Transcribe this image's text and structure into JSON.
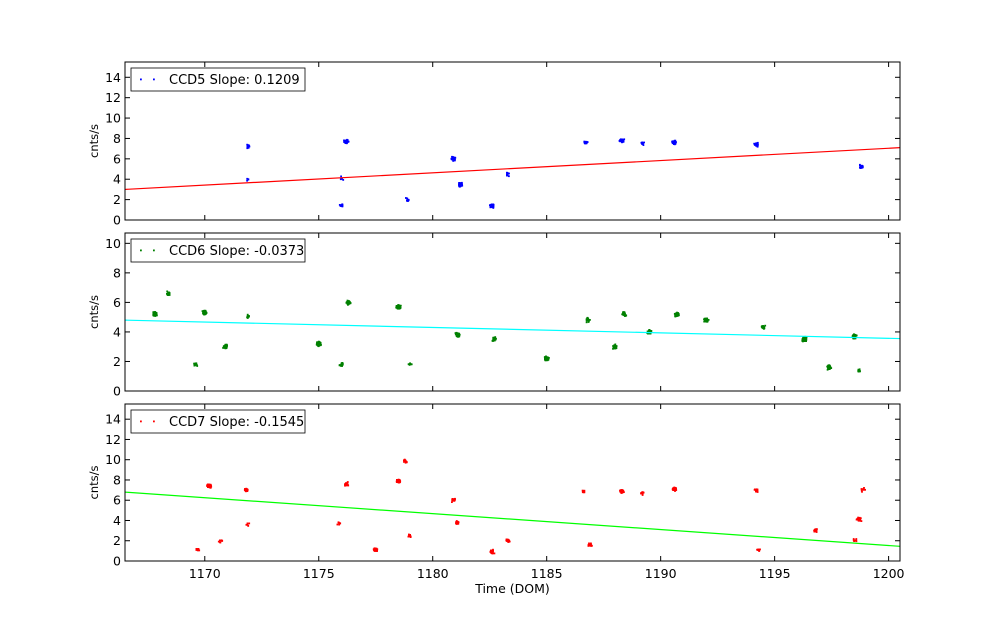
{
  "chart_data": [
    {
      "type": "scatter",
      "legend_label": "CCD5 Slope: 0.1209",
      "point_color": "#0000ff",
      "fit_color": "#ff0000",
      "ylabel": "cnts/s",
      "xlim": [
        1166.5,
        1200.5
      ],
      "ylim": [
        0,
        15.5
      ],
      "yticks": [
        0,
        2,
        4,
        6,
        8,
        10,
        12,
        14
      ],
      "fit": {
        "x": [
          1166.5,
          1200.5
        ],
        "y": [
          3.0,
          7.1
        ]
      },
      "clusters": [
        {
          "x": 1171.9,
          "y": 7.2,
          "n": 25
        },
        {
          "x": 1171.9,
          "y": 4.0,
          "n": 4
        },
        {
          "x": 1176.0,
          "y": 1.4,
          "n": 14
        },
        {
          "x": 1176.0,
          "y": 4.1,
          "n": 6
        },
        {
          "x": 1176.2,
          "y": 7.7,
          "n": 30
        },
        {
          "x": 1178.9,
          "y": 2.0,
          "n": 10
        },
        {
          "x": 1180.9,
          "y": 6.0,
          "n": 35
        },
        {
          "x": 1181.2,
          "y": 3.5,
          "n": 30
        },
        {
          "x": 1182.6,
          "y": 1.4,
          "n": 50
        },
        {
          "x": 1183.3,
          "y": 4.5,
          "n": 12
        },
        {
          "x": 1186.7,
          "y": 7.6,
          "n": 18
        },
        {
          "x": 1188.3,
          "y": 7.8,
          "n": 45
        },
        {
          "x": 1189.2,
          "y": 7.5,
          "n": 10
        },
        {
          "x": 1190.6,
          "y": 7.6,
          "n": 55
        },
        {
          "x": 1194.2,
          "y": 7.4,
          "n": 18
        },
        {
          "x": 1198.8,
          "y": 5.2,
          "n": 25
        }
      ]
    },
    {
      "type": "scatter",
      "legend_label": "CCD6 Slope: -0.0373",
      "point_color": "#008000",
      "fit_color": "#00ffff",
      "ylabel": "cnts/s",
      "xlim": [
        1166.5,
        1200.5
      ],
      "ylim": [
        0,
        10.7
      ],
      "yticks": [
        0,
        2,
        4,
        6,
        8,
        10
      ],
      "fit": {
        "x": [
          1166.5,
          1200.5
        ],
        "y": [
          4.8,
          3.55
        ]
      },
      "clusters": [
        {
          "x": 1167.8,
          "y": 5.2,
          "n": 70
        },
        {
          "x": 1168.4,
          "y": 6.6,
          "n": 20
        },
        {
          "x": 1169.6,
          "y": 1.8,
          "n": 15
        },
        {
          "x": 1170.0,
          "y": 5.3,
          "n": 70
        },
        {
          "x": 1170.9,
          "y": 3.0,
          "n": 40
        },
        {
          "x": 1171.9,
          "y": 5.0,
          "n": 10
        },
        {
          "x": 1175.0,
          "y": 3.2,
          "n": 70
        },
        {
          "x": 1176.0,
          "y": 1.8,
          "n": 12
        },
        {
          "x": 1176.3,
          "y": 6.0,
          "n": 40
        },
        {
          "x": 1178.5,
          "y": 5.7,
          "n": 70
        },
        {
          "x": 1179.0,
          "y": 1.8,
          "n": 8
        },
        {
          "x": 1181.1,
          "y": 3.8,
          "n": 50
        },
        {
          "x": 1182.7,
          "y": 3.5,
          "n": 35
        },
        {
          "x": 1185.0,
          "y": 2.2,
          "n": 60
        },
        {
          "x": 1186.8,
          "y": 4.8,
          "n": 20
        },
        {
          "x": 1188.0,
          "y": 3.0,
          "n": 40
        },
        {
          "x": 1188.4,
          "y": 5.2,
          "n": 30
        },
        {
          "x": 1189.5,
          "y": 4.0,
          "n": 40
        },
        {
          "x": 1190.7,
          "y": 5.2,
          "n": 60
        },
        {
          "x": 1192.0,
          "y": 4.8,
          "n": 60
        },
        {
          "x": 1194.5,
          "y": 4.3,
          "n": 35
        },
        {
          "x": 1196.3,
          "y": 3.5,
          "n": 110
        },
        {
          "x": 1197.4,
          "y": 1.6,
          "n": 45
        },
        {
          "x": 1198.5,
          "y": 3.7,
          "n": 45
        },
        {
          "x": 1198.7,
          "y": 1.4,
          "n": 10
        }
      ]
    },
    {
      "type": "scatter",
      "legend_label": "CCD7 Slope: -0.1545",
      "point_color": "#ff0000",
      "fit_color": "#00ff00",
      "ylabel": "cnts/s",
      "xlabel": "Time (DOM)",
      "xlim": [
        1166.5,
        1200.5
      ],
      "ylim": [
        0,
        15.5
      ],
      "yticks": [
        0,
        2,
        4,
        6,
        8,
        10,
        12,
        14
      ],
      "xticks": [
        1170,
        1175,
        1180,
        1185,
        1190,
        1195,
        1200
      ],
      "fit": {
        "x": [
          1166.5,
          1200.5
        ],
        "y": [
          6.8,
          1.45
        ]
      },
      "clusters": [
        {
          "x": 1169.7,
          "y": 1.1,
          "n": 10
        },
        {
          "x": 1170.2,
          "y": 7.4,
          "n": 70
        },
        {
          "x": 1170.7,
          "y": 2.0,
          "n": 8
        },
        {
          "x": 1171.8,
          "y": 7.0,
          "n": 20
        },
        {
          "x": 1171.9,
          "y": 3.6,
          "n": 6
        },
        {
          "x": 1175.9,
          "y": 3.7,
          "n": 8
        },
        {
          "x": 1176.2,
          "y": 7.6,
          "n": 25
        },
        {
          "x": 1177.5,
          "y": 1.1,
          "n": 60
        },
        {
          "x": 1178.5,
          "y": 7.9,
          "n": 60
        },
        {
          "x": 1178.8,
          "y": 9.8,
          "n": 12
        },
        {
          "x": 1179.0,
          "y": 2.5,
          "n": 12
        },
        {
          "x": 1180.9,
          "y": 6.0,
          "n": 20
        },
        {
          "x": 1181.1,
          "y": 3.8,
          "n": 18
        },
        {
          "x": 1182.6,
          "y": 0.9,
          "n": 35
        },
        {
          "x": 1183.3,
          "y": 2.0,
          "n": 18
        },
        {
          "x": 1186.6,
          "y": 6.9,
          "n": 10
        },
        {
          "x": 1186.9,
          "y": 1.6,
          "n": 20
        },
        {
          "x": 1188.3,
          "y": 6.9,
          "n": 40
        },
        {
          "x": 1189.2,
          "y": 6.7,
          "n": 12
        },
        {
          "x": 1190.6,
          "y": 7.1,
          "n": 55
        },
        {
          "x": 1194.2,
          "y": 7.0,
          "n": 18
        },
        {
          "x": 1194.3,
          "y": 1.1,
          "n": 10
        },
        {
          "x": 1196.8,
          "y": 3.0,
          "n": 18
        },
        {
          "x": 1198.5,
          "y": 2.1,
          "n": 10
        },
        {
          "x": 1198.7,
          "y": 4.1,
          "n": 20
        },
        {
          "x": 1198.9,
          "y": 7.0,
          "n": 8
        }
      ]
    }
  ]
}
